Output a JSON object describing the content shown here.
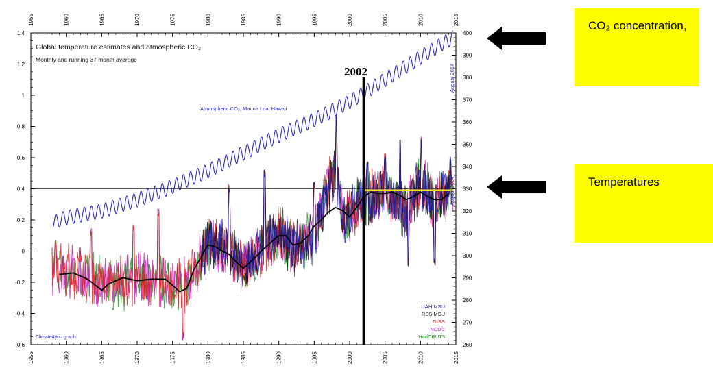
{
  "chart_data": {
    "type": "line",
    "title": "Global temperature estimates and atmospheric CO₂",
    "subtitle": "Monthly and running 37 month average",
    "x_range": [
      1955,
      2015
    ],
    "x_ticks": [
      "1955",
      "1960",
      "1965",
      "1970",
      "1975",
      "1980",
      "1985",
      "1990",
      "1995",
      "2000",
      "2005",
      "2010",
      "2015"
    ],
    "y_left_range": [
      -0.6,
      1.4
    ],
    "y_left_ticks": [
      "-0.6",
      "-0.4",
      "-0.2",
      "0",
      "0.2",
      "0.4",
      "0.6",
      "0.8",
      "1",
      "1.2",
      "1.4"
    ],
    "y_right_range": [
      260,
      400
    ],
    "y_right_ticks": [
      "260",
      "270",
      "280",
      "290",
      "300",
      "310",
      "320",
      "330",
      "340",
      "350",
      "360",
      "370",
      "380",
      "390",
      "400"
    ],
    "reference_line": 0.4,
    "marker_label": "2002",
    "marker_year": 2002,
    "co2_label": "Atmospheric CO₂, Mauna Loa, Hawaii",
    "co2_end_label": "August 2014",
    "temp_end_label": "August 2014",
    "credit": "Climate4you graph",
    "trend_after_2002": 0.39,
    "legend": [
      "UAH MSU",
      "RSS MSU",
      "GISS",
      "NCDC",
      "HadCRUT3"
    ],
    "colors": {
      "co2": "#2a2acc",
      "uah": "#2020b0",
      "rss": "#111111",
      "giss": "#dd2222",
      "ncdc": "#cc22cc",
      "hadcrut": "#229922",
      "running": "#000000",
      "trend": "#f2e600",
      "marker": "#000000"
    },
    "co2_series": {
      "x": [
        1958.2,
        1960,
        1965,
        1970,
        1975,
        1980,
        1985,
        1990,
        1995,
        2000,
        2005,
        2010,
        2014.6
      ],
      "y": [
        315,
        317,
        320,
        325,
        331,
        338,
        346,
        354,
        361,
        369,
        379,
        389,
        398
      ],
      "seasonal_amplitude": 3.2
    },
    "running_mean": {
      "x": [
        1959,
        1961,
        1963,
        1965,
        1966,
        1968,
        1970,
        1972,
        1974,
        1976,
        1977,
        1978,
        1980,
        1981,
        1982,
        1983,
        1984,
        1985,
        1986,
        1988,
        1990,
        1991,
        1992,
        1993,
        1994,
        1995,
        1996,
        1997,
        1998,
        1999,
        2000,
        2001,
        2002,
        2003,
        2004,
        2005,
        2006,
        2007,
        2008,
        2009,
        2010,
        2011,
        2012,
        2013,
        2014
      ],
      "y": [
        -0.15,
        -0.14,
        -0.18,
        -0.25,
        -0.21,
        -0.17,
        -0.19,
        -0.18,
        -0.18,
        -0.26,
        -0.24,
        -0.12,
        0.04,
        0.03,
        0.0,
        -0.02,
        -0.07,
        -0.11,
        -0.07,
        0.02,
        0.1,
        0.1,
        0.04,
        0.05,
        0.09,
        0.16,
        0.2,
        0.25,
        0.28,
        0.26,
        0.22,
        0.28,
        0.35,
        0.38,
        0.37,
        0.37,
        0.38,
        0.36,
        0.33,
        0.35,
        0.38,
        0.35,
        0.33,
        0.33,
        0.37
      ]
    },
    "monthly_temperature_envelope": {
      "x": [
        1958,
        1962,
        1965,
        1970,
        1975,
        1977,
        1980,
        1983,
        1985,
        1990,
        1992,
        1995,
        1998,
        1999,
        2001,
        2005,
        2008,
        2010,
        2012,
        2014.6
      ],
      "y": [
        -0.1,
        -0.15,
        -0.22,
        -0.18,
        -0.2,
        -0.22,
        0.05,
        0.0,
        -0.12,
        0.12,
        0.02,
        0.1,
        0.55,
        0.2,
        0.3,
        0.38,
        0.25,
        0.45,
        0.3,
        0.4
      ],
      "spread": 0.22
    },
    "temperature_peaks": {
      "x": [
        1958.5,
        1963.5,
        1969.5,
        1973,
        1976.5,
        1983,
        1988,
        1995,
        1998.1,
        2002.5,
        2005,
        2007.1,
        2008.3,
        2010.1,
        2012,
        2014.2
      ],
      "y": [
        0.05,
        0.12,
        0.15,
        0.25,
        -0.55,
        0.4,
        0.5,
        0.42,
        0.86,
        0.55,
        0.6,
        0.7,
        -0.08,
        0.72,
        -0.07,
        0.58
      ]
    }
  },
  "annotations": {
    "co2_box": "CO₂ concentration,",
    "temp_box": "Temperatures"
  }
}
